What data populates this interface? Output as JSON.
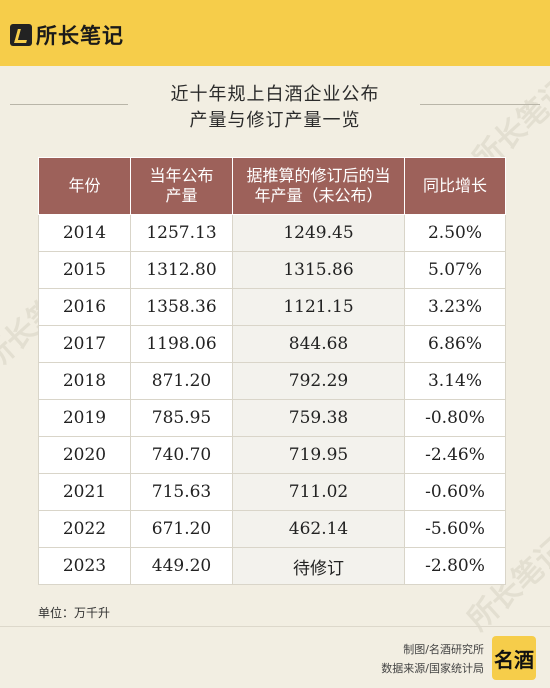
{
  "brand": {
    "logo_text": "所长笔记"
  },
  "title": {
    "line1": "近十年规上白酒企业公布",
    "line2": "产量与修订产量一览"
  },
  "table": {
    "headers": [
      "年份",
      "当年公布\n产量",
      "据推算的修订后的当\n年产量（未公布）",
      "同比增长"
    ],
    "rows": [
      [
        "2014",
        "1257.13",
        "1249.45",
        "2.50%"
      ],
      [
        "2015",
        "1312.80",
        "1315.86",
        "5.07%"
      ],
      [
        "2016",
        "1358.36",
        "1121.15",
        "3.23%"
      ],
      [
        "2017",
        "1198.06",
        "844.68",
        "6.86%"
      ],
      [
        "2018",
        "871.20",
        "792.29",
        "3.14%"
      ],
      [
        "2019",
        "785.95",
        "759.38",
        "-0.80%"
      ],
      [
        "2020",
        "740.70",
        "719.95",
        "-2.46%"
      ],
      [
        "2021",
        "715.63",
        "711.02",
        "-0.60%"
      ],
      [
        "2022",
        "671.20",
        "462.14",
        "-5.60%"
      ],
      [
        "2023",
        "449.20",
        "待修订",
        "-2.80%"
      ]
    ]
  },
  "unit_note": "单位：万千升",
  "credits": {
    "maker": "制图/名酒研究所",
    "source": "数据来源/国家统计局"
  },
  "seal_text": "名酒",
  "watermark_text": "所长笔记",
  "colors": {
    "header_bg": "#9d615a",
    "topbar": "#f6cd4a",
    "page_bg": "#f2eee2"
  }
}
